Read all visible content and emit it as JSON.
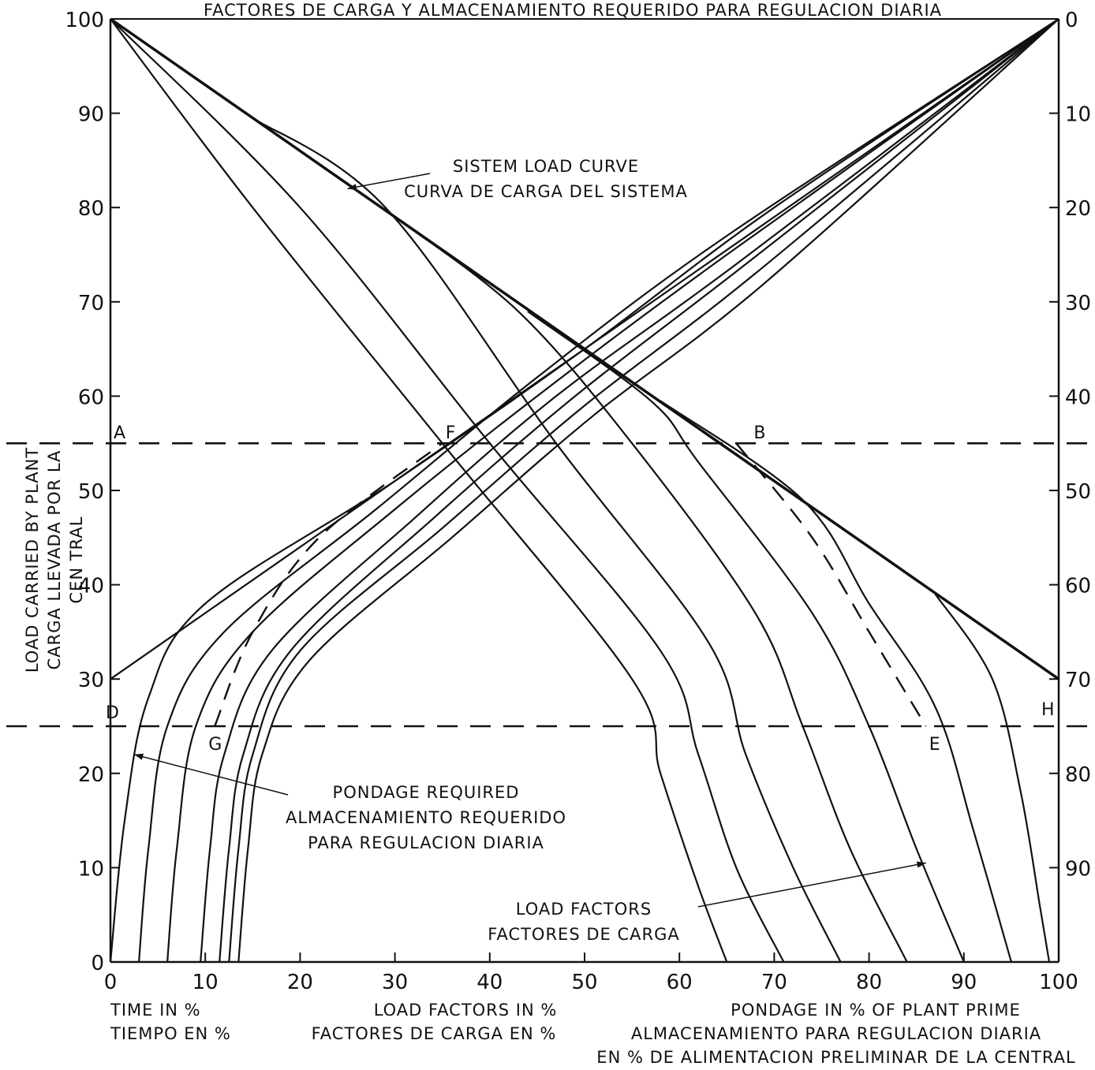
{
  "chart_data": {
    "type": "line",
    "title": "FACTORES DE CARGA Y ALMACENAMIENTO REQUERIDO PARA REGULACION DIARIA",
    "xlabel_lines": [
      "TIME IN %",
      "TIEMPO EN %"
    ],
    "xlabel_mid_lines": [
      "LOAD FACTORS IN %",
      "FACTORES DE CARGA EN %"
    ],
    "xlabel_right_lines": [
      "PONDAGE IN % OF PLANT PRIME",
      "ALMACENAMIENTO PARA REGULACION DIARIA",
      "EN % DE ALIMENTACION PRELIMINAR DE LA CENTRAL"
    ],
    "ylabel_lines": [
      "LOAD CARRIED BY PLANT",
      "CARGA LLEVADA POR LA",
      "CEN    TRAL"
    ],
    "xlim": [
      0,
      100
    ],
    "ylim": [
      0,
      100
    ],
    "y2lim": [
      100,
      0
    ],
    "x_ticks": [
      0,
      10,
      20,
      30,
      40,
      50,
      60,
      70,
      80,
      90,
      100
    ],
    "x_tick_labels": [
      "0",
      "10",
      "20",
      "30",
      "40",
      "50",
      "60",
      "70",
      "80",
      "90",
      "100"
    ],
    "y_ticks": [
      0,
      10,
      20,
      30,
      40,
      50,
      60,
      70,
      80,
      90,
      100
    ],
    "y_tick_labels": [
      "0",
      "10",
      "20",
      "30",
      "40",
      "50",
      "60",
      "70",
      "80",
      "90",
      "100"
    ],
    "y2_tick_labels": [
      "0",
      "10",
      "20",
      "30",
      "40",
      "50",
      "60",
      "70",
      "80",
      "90"
    ],
    "y2_tick_values": [
      0,
      10,
      20,
      30,
      40,
      50,
      60,
      70,
      80,
      90
    ],
    "annotations": [
      {
        "text_lines": [
          "SISTEM LOAD CURVE",
          "CURVA DE CARGA DEL SISTEMA"
        ],
        "arrow_to": [
          25,
          82
        ]
      },
      {
        "text_lines": [
          "PONDAGE REQUIRED",
          "ALMACENAMIENTO REQUERIDO",
          "PARA REGULACION DIARIA"
        ],
        "arrow_to": [
          2.5,
          22
        ]
      },
      {
        "text_lines": [
          "LOAD FACTORS",
          "FACTORES DE CARGA"
        ],
        "arrow_to": [
          86,
          10.5
        ]
      }
    ],
    "point_labels": [
      {
        "text": "A",
        "x": 0,
        "y": 55
      },
      {
        "text": "F",
        "x": 35,
        "y": 55
      },
      {
        "text": "B",
        "x": 66,
        "y": 55
      },
      {
        "text": "D",
        "x": 0,
        "y": 25
      },
      {
        "text": "G",
        "x": 10,
        "y": 25
      },
      {
        "text": "E",
        "x": 86,
        "y": 25
      },
      {
        "text": "H",
        "x": 100,
        "y": 25
      }
    ],
    "reference_lines": [
      {
        "y": 55,
        "style": "dashed"
      },
      {
        "y": 25,
        "style": "dashed"
      }
    ],
    "system_load_curve": {
      "x": [
        0,
        100
      ],
      "y": [
        100,
        30
      ]
    },
    "load_factor_curves": [
      {
        "x": [
          0,
          15,
          35,
          55,
          58,
          62,
          65
        ],
        "y": [
          100,
          80,
          55,
          30,
          20,
          8,
          0
        ]
      },
      {
        "x": [
          0,
          20,
          40,
          58,
          62,
          66,
          71
        ],
        "y": [
          100,
          80,
          55,
          33,
          22,
          10,
          0
        ]
      },
      {
        "x": [
          15,
          29,
          47,
          63,
          67,
          72,
          77
        ],
        "y": [
          89.5,
          80,
          55,
          34,
          22,
          10,
          0
        ]
      },
      {
        "x": [
          30,
          43,
          55,
          68,
          73,
          78,
          84
        ],
        "y": [
          79,
          69,
          55,
          37,
          25,
          12,
          0
        ]
      },
      {
        "x": [
          44,
          57,
          62,
          74,
          80,
          85,
          90
        ],
        "y": [
          69,
          59.5,
          53,
          37,
          25,
          12,
          0
        ]
      },
      {
        "x": [
          58,
          73,
          80,
          87,
          91,
          95
        ],
        "y": [
          59.5,
          49,
          38,
          27,
          14,
          0
        ]
      },
      {
        "x": [
          87,
          93,
          96,
          98,
          99
        ],
        "y": [
          39,
          30,
          18,
          6,
          0
        ]
      }
    ],
    "dashed_load_factor_curve": {
      "x": [
        66,
        74,
        80,
        86
      ],
      "y": [
        55,
        45,
        35,
        25
      ]
    },
    "pondage_straight_line": {
      "x": [
        0,
        100
      ],
      "y": [
        30,
        100
      ]
    },
    "pondage_curves": [
      {
        "x": [
          0,
          1.5,
          4,
          10,
          30,
          50,
          70,
          100
        ],
        "y": [
          0,
          15,
          28,
          38,
          51,
          65,
          80,
          100
        ]
      },
      {
        "x": [
          3,
          4,
          6,
          12,
          28,
          45,
          65,
          100
        ],
        "y": [
          0,
          12,
          25,
          35,
          48,
          62,
          77,
          100
        ]
      },
      {
        "x": [
          6,
          7,
          9,
          15,
          30,
          45,
          65,
          100
        ],
        "y": [
          0,
          12,
          25,
          35,
          48,
          60,
          75,
          100
        ]
      },
      {
        "x": [
          9.5,
          10.5,
          12,
          17,
          32,
          47,
          66,
          100
        ],
        "y": [
          0,
          12,
          22,
          33,
          47,
          60,
          74,
          100
        ]
      },
      {
        "x": [
          11.5,
          12.5,
          14,
          19,
          34,
          49,
          67,
          100
        ],
        "y": [
          0,
          12,
          22,
          33,
          47,
          60,
          74,
          100
        ]
      },
      {
        "x": [
          12.5,
          13.5,
          15,
          20,
          35,
          50,
          68,
          100
        ],
        "y": [
          0,
          12,
          22,
          33,
          46,
          59,
          73,
          100
        ]
      },
      {
        "x": [
          13.5,
          14.5,
          16,
          21,
          36,
          51,
          69,
          100
        ],
        "y": [
          0,
          12,
          22,
          32,
          45,
          58,
          72,
          100
        ]
      }
    ],
    "dashed_pondage_curve": {
      "x": [
        11,
        15,
        22,
        35
      ],
      "y": [
        25,
        35,
        45,
        55
      ]
    },
    "grid": false
  }
}
